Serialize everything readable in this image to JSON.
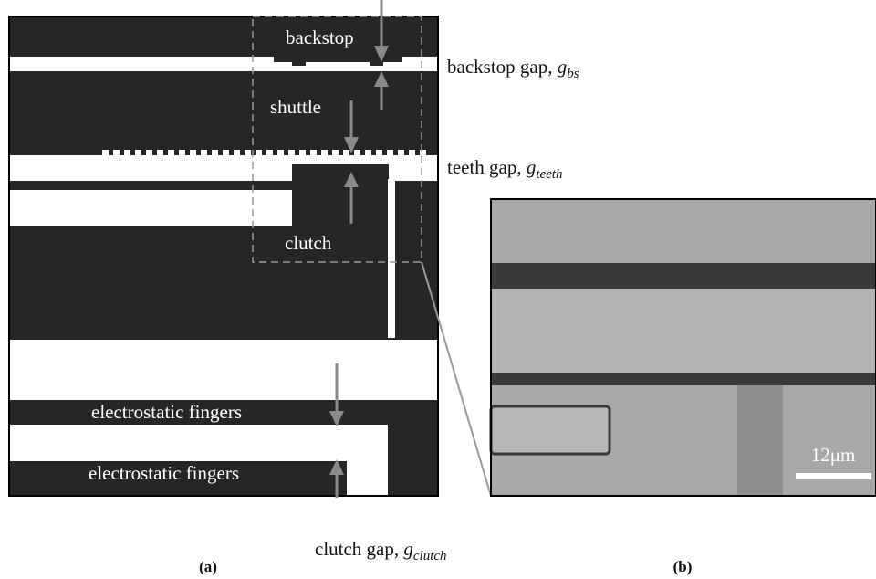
{
  "panel_a": {
    "caption": "(a)",
    "labels": {
      "backstop": "backstop",
      "shuttle": "shuttle",
      "clutch": "clutch",
      "fingers_top": "electrostatic fingers",
      "fingers_bottom": "electrostatic fingers"
    },
    "gaps": [
      {
        "text": "backstop gap, ",
        "symbol": "g",
        "subscript": "bs"
      },
      {
        "text": "teeth gap, ",
        "symbol": "g",
        "subscript": "teeth"
      },
      {
        "text": "clutch gap, ",
        "symbol": "g",
        "subscript": "clutch"
      }
    ]
  },
  "panel_b": {
    "caption": "(b)",
    "scale_bar": "12μm"
  }
}
